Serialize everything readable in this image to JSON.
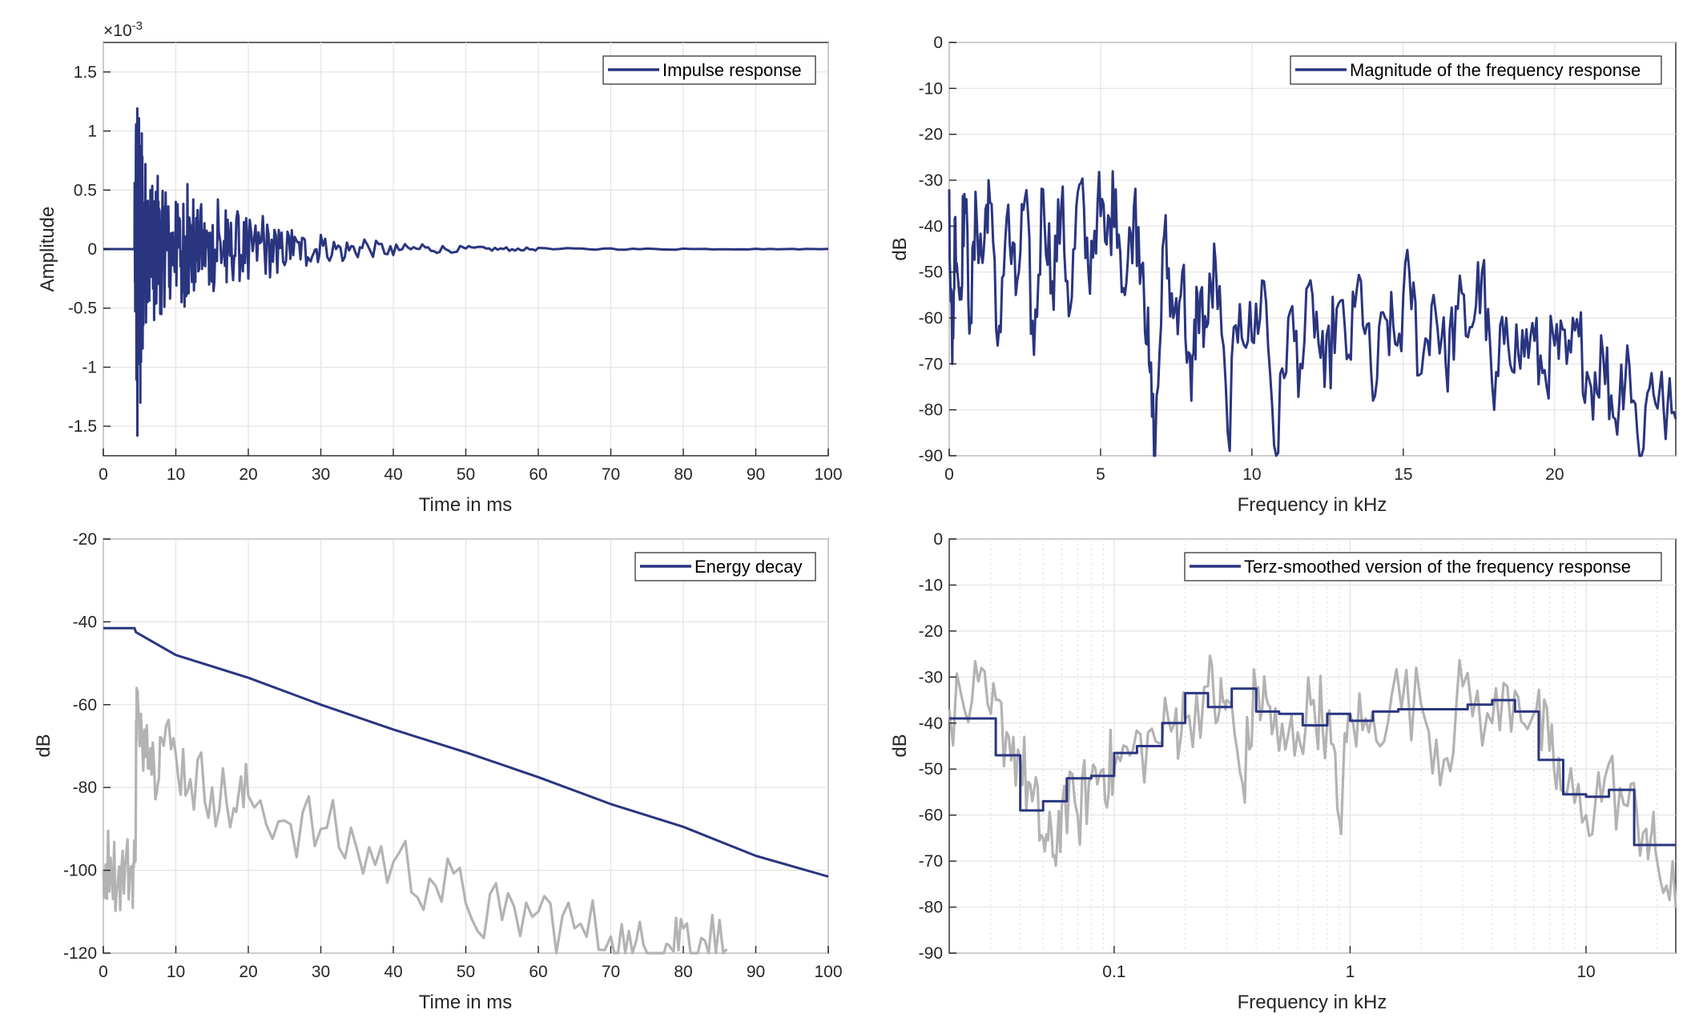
{
  "colors": {
    "series": "#2a3580",
    "gray": "#b3b3b3",
    "axis": "#262626",
    "grid": "#e3e3e3"
  },
  "chart_data": [
    {
      "type": "line",
      "panel": "top-left",
      "title": "",
      "xlabel": "Time in ms",
      "ylabel": "Amplitude",
      "exponent": "×10",
      "exponent_power": "-3",
      "xlim": [
        0,
        100
      ],
      "ylim": [
        -1.75,
        1.75
      ],
      "xticks": [
        0,
        10,
        20,
        30,
        40,
        50,
        60,
        70,
        80,
        90,
        100
      ],
      "xticklabels": [
        "0",
        "10",
        "20",
        "30",
        "40",
        "50",
        "60",
        "70",
        "80",
        "90",
        "100"
      ],
      "yticks": [
        -1.5,
        -1,
        -0.5,
        0,
        0.5,
        1,
        1.5
      ],
      "yticklabels": [
        "-1.5",
        "-1",
        "-0.5",
        "0",
        "0.5",
        "1",
        "1.5"
      ],
      "grid": true,
      "legend": "top-right",
      "series": [
        {
          "name": "Impulse response",
          "color": "#2a3580",
          "x": [
            0,
            4.3,
            4.5,
            4.7,
            4.9,
            5.1,
            5.3,
            5.5,
            5.8,
            6.1,
            6.5,
            7,
            7.5,
            8,
            8.6,
            9.2,
            10,
            10.8,
            11.6,
            12.5,
            13.5,
            14.6,
            15.8,
            17,
            18.5,
            20,
            22,
            24,
            26,
            28,
            30,
            33,
            36,
            40,
            44,
            48,
            52,
            56,
            60,
            70,
            80,
            90,
            100
          ],
          "y": [
            0,
            0,
            0.95,
            -1.58,
            1.06,
            -1.3,
            0.98,
            -0.62,
            0.72,
            -0.45,
            0.5,
            -0.6,
            0.62,
            -0.55,
            0.48,
            -0.42,
            0.4,
            -0.45,
            0.55,
            -0.35,
            0.38,
            -0.3,
            0.42,
            -0.28,
            0.32,
            -0.25,
            0.28,
            -0.2,
            0.16,
            -0.14,
            0.12,
            -0.1,
            0.08,
            -0.05,
            0.04,
            -0.03,
            0.02,
            -0.015,
            0.01,
            0.006,
            0.004,
            0.003,
            0.002
          ]
        }
      ]
    },
    {
      "type": "line",
      "panel": "top-right",
      "title": "",
      "xlabel": "Frequency in kHz",
      "ylabel": "dB",
      "xlim": [
        0,
        24
      ],
      "ylim": [
        -90,
        0
      ],
      "xticks": [
        0,
        5,
        10,
        15,
        20
      ],
      "xticklabels": [
        "0",
        "5",
        "10",
        "15",
        "20"
      ],
      "yticks": [
        0,
        -10,
        -20,
        -30,
        -40,
        -50,
        -60,
        -70,
        -80,
        -90
      ],
      "yticklabels": [
        "0",
        "-10",
        "-20",
        "-30",
        "-40",
        "-50",
        "-60",
        "-70",
        "-80",
        "-90"
      ],
      "grid": true,
      "legend": "top-right",
      "series": [
        {
          "name": "Magnitude of the frequency response",
          "color": "#2a3580",
          "x": [
            0,
            0.1,
            0.2,
            0.35,
            0.5,
            0.7,
            0.9,
            1.1,
            1.3,
            1.6,
            1.9,
            2.2,
            2.5,
            2.8,
            3.1,
            3.4,
            3.7,
            4.0,
            4.3,
            4.6,
            4.9,
            5.2,
            5.5,
            5.8,
            6.1,
            6.4,
            6.6,
            6.8,
            7.1,
            7.4,
            7.7,
            8.0,
            8.2,
            8.5,
            8.8,
            9.2,
            9.6,
            10,
            10.4,
            10.8,
            11.2,
            11.6,
            12,
            12.4,
            12.8,
            13.2,
            13.6,
            14,
            14.4,
            14.8,
            15.2,
            15.6,
            16,
            16.4,
            16.8,
            17.2,
            17.6,
            18,
            18.4,
            18.8,
            19.2,
            19.6,
            20,
            20.4,
            20.8,
            21.2,
            21.6,
            22,
            22.4,
            22.8,
            23.2,
            23.6,
            24
          ],
          "y": [
            -32,
            -70,
            -38,
            -56,
            -33,
            -60,
            -37,
            -48,
            -30,
            -66,
            -38,
            -55,
            -34,
            -68,
            -32,
            -52,
            -36,
            -58,
            -31,
            -50,
            -35,
            -44,
            -32,
            -55,
            -36,
            -48,
            -70,
            -90,
            -42,
            -60,
            -50,
            -78,
            -55,
            -62,
            -48,
            -85,
            -57,
            -65,
            -52,
            -90,
            -60,
            -70,
            -55,
            -75,
            -58,
            -68,
            -52,
            -78,
            -60,
            -66,
            -50,
            -72,
            -55,
            -70,
            -58,
            -62,
            -50,
            -80,
            -60,
            -68,
            -64,
            -72,
            -66,
            -70,
            -64,
            -75,
            -68,
            -82,
            -66,
            -90,
            -72,
            -80,
            -82
          ]
        }
      ]
    },
    {
      "type": "line",
      "panel": "bottom-left",
      "title": "",
      "xlabel": "Time in ms",
      "ylabel": "dB",
      "xlim": [
        0,
        100
      ],
      "ylim": [
        -120,
        -20
      ],
      "xticks": [
        0,
        10,
        20,
        30,
        40,
        50,
        60,
        70,
        80,
        90,
        100
      ],
      "xticklabels": [
        "0",
        "10",
        "20",
        "30",
        "40",
        "50",
        "60",
        "70",
        "80",
        "90",
        "100"
      ],
      "yticks": [
        -20,
        -40,
        -60,
        -80,
        -100,
        -120
      ],
      "yticklabels": [
        "-20",
        "-40",
        "-60",
        "-80",
        "-100",
        "-120"
      ],
      "grid": true,
      "legend": "top-right",
      "series": [
        {
          "name": "Energy decay",
          "color": "#2a3580",
          "x": [
            0,
            4.3,
            4.5,
            10,
            20,
            30,
            40,
            50,
            60,
            70,
            80,
            90,
            100
          ],
          "y": [
            -41.5,
            -41.5,
            -42.5,
            -48,
            -53.5,
            -60,
            -66,
            -71.5,
            -77.5,
            -84,
            -89.5,
            -96.5,
            -101.5
          ]
        },
        {
          "color": "#b3b3b3",
          "x": [
            0,
            1,
            2,
            3,
            4,
            4.4,
            4.6,
            5,
            6,
            7,
            8,
            10,
            12,
            15,
            18,
            20,
            25,
            30,
            35,
            40,
            45,
            50,
            55,
            60,
            65,
            70,
            73,
            76,
            78,
            80,
            83,
            86
          ],
          "y": [
            -100,
            -97,
            -103,
            -99,
            -101,
            -98,
            -56,
            -70,
            -65,
            -75,
            -68,
            -72,
            -78,
            -80,
            -85,
            -82,
            -88,
            -90,
            -95,
            -98,
            -102,
            -108,
            -112,
            -110,
            -114,
            -116,
            -120,
            -120,
            -118,
            -114,
            -117,
            -119
          ]
        }
      ]
    },
    {
      "type": "line",
      "panel": "bottom-right",
      "title": "",
      "xlabel": "Frequency in kHz",
      "ylabel": "dB",
      "xscale": "log",
      "xlim": [
        0.02,
        24
      ],
      "ylim": [
        -90,
        0
      ],
      "xticks": [
        0.1,
        1,
        10
      ],
      "xticklabels": [
        "0.1",
        "1",
        "10"
      ],
      "yticks": [
        0,
        -10,
        -20,
        -30,
        -40,
        -50,
        -60,
        -70,
        -80,
        -90
      ],
      "yticklabels": [
        "0",
        "-10",
        "-20",
        "-30",
        "-40",
        "-50",
        "-60",
        "-70",
        "-80",
        "-90"
      ],
      "grid": true,
      "legend": "top-right",
      "series": [
        {
          "name": "Terz-smoothed version of the frequency response",
          "color": "#2a3580",
          "x": [
            0.02,
            0.0315,
            0.0315,
            0.04,
            0.04,
            0.05,
            0.05,
            0.063,
            0.063,
            0.08,
            0.08,
            0.1,
            0.1,
            0.125,
            0.125,
            0.16,
            0.16,
            0.2,
            0.2,
            0.25,
            0.25,
            0.315,
            0.315,
            0.4,
            0.4,
            0.5,
            0.5,
            0.63,
            0.63,
            0.8,
            0.8,
            1.0,
            1.0,
            1.25,
            1.25,
            1.6,
            1.6,
            2.0,
            2.0,
            2.5,
            2.5,
            3.15,
            3.15,
            4.0,
            4.0,
            5.0,
            5.0,
            6.3,
            6.3,
            8.0,
            8.0,
            10,
            10,
            12.5,
            12.5,
            16,
            16,
            20,
            20,
            24
          ],
          "y": [
            -39,
            -39,
            -47,
            -47,
            -59,
            -59,
            -57,
            -57,
            -52,
            -52,
            -51.5,
            -51.5,
            -46.5,
            -46.5,
            -45,
            -45,
            -40,
            -40,
            -33.5,
            -33.5,
            -36.5,
            -36.5,
            -32.5,
            -32.5,
            -37.5,
            -37.5,
            -38,
            -38,
            -40.5,
            -40.5,
            -38,
            -38,
            -39.5,
            -39.5,
            -37.5,
            -37.5,
            -37,
            -37,
            -37,
            -37,
            -37,
            -37,
            -36,
            -36,
            -35,
            -35,
            -37.5,
            -37.5,
            -48,
            -48,
            -55.5,
            -55.5,
            -56,
            -56,
            -54.5,
            -54.5,
            -66.5,
            -66.5,
            -66.5,
            -66.5
          ]
        },
        {
          "color": "#b3b3b3",
          "x": [
            0.02,
            0.025,
            0.03,
            0.035,
            0.04,
            0.045,
            0.05,
            0.055,
            0.06,
            0.07,
            0.08,
            0.09,
            0.1,
            0.12,
            0.15,
            0.18,
            0.2,
            0.25,
            0.28,
            0.3,
            0.35,
            0.4,
            0.45,
            0.5,
            0.6,
            0.7,
            0.8,
            0.9,
            1.0,
            1.2,
            1.5,
            2,
            2.5,
            3,
            4,
            5,
            6,
            7,
            8,
            10,
            12,
            15,
            18,
            20,
            24
          ],
          "y": [
            -37,
            -35,
            -38,
            -42,
            -48,
            -57,
            -65,
            -69,
            -58,
            -60,
            -52,
            -50,
            -50,
            -46,
            -44,
            -40,
            -39,
            -32,
            -37,
            -35,
            -53,
            -33,
            -36,
            -46,
            -42,
            -35,
            -40,
            -61,
            -38,
            -42,
            -34,
            -36,
            -48,
            -32,
            -40,
            -33,
            -38,
            -46,
            -55,
            -60,
            -52,
            -58,
            -63,
            -70,
            -80
          ]
        }
      ]
    }
  ]
}
